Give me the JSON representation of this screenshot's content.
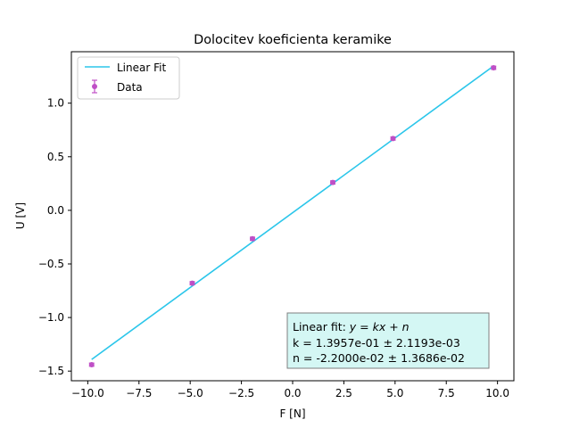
{
  "chart_data": {
    "type": "scatter",
    "title": "Dolocitev koeficienta keramike",
    "xlabel": "F [N]",
    "ylabel": "U [V]",
    "xlim": [
      -10.8,
      10.8
    ],
    "ylim": [
      -1.59,
      1.48
    ],
    "grid": false,
    "legend_placement": "upper-left",
    "x_ticks": [
      -10.0,
      -7.5,
      -5.0,
      -2.5,
      0.0,
      2.5,
      5.0,
      7.5,
      10.0
    ],
    "x_tick_labels": [
      "−10.0",
      "−7.5",
      "−5.0",
      "−2.5",
      "0.0",
      "2.5",
      "5.0",
      "7.5",
      "10.0"
    ],
    "y_ticks": [
      -1.5,
      -1.0,
      -0.5,
      0.0,
      0.5,
      1.0
    ],
    "y_tick_labels": [
      "−1.5",
      "−1.0",
      "−0.5",
      "0.0",
      "0.5",
      "1.0"
    ],
    "series": [
      {
        "name": "Data",
        "kind": "errorbar",
        "color": "#bf4fc6",
        "x": [
          -9.81,
          -4.9,
          -1.96,
          1.96,
          4.9,
          9.81
        ],
        "y": [
          -1.44,
          -0.68,
          -0.265,
          0.26,
          0.67,
          1.33
        ],
        "yerr": [
          0.015,
          0.015,
          0.015,
          0.015,
          0.015,
          0.015
        ]
      },
      {
        "name": "Linear Fit",
        "kind": "line",
        "color": "#2bc6ea",
        "x": [
          -9.81,
          9.81
        ],
        "y": [
          -1.3912,
          1.3472
        ]
      }
    ],
    "annotation": {
      "line1_prefix": "Linear fit: ",
      "line1_formula": "y = kx + n",
      "line2": "k = 1.3957e-01 ± 2.1193e-03",
      "line3": "n = -2.2000e-02 ± 1.3686e-02",
      "background": "#d4f7f4"
    }
  }
}
